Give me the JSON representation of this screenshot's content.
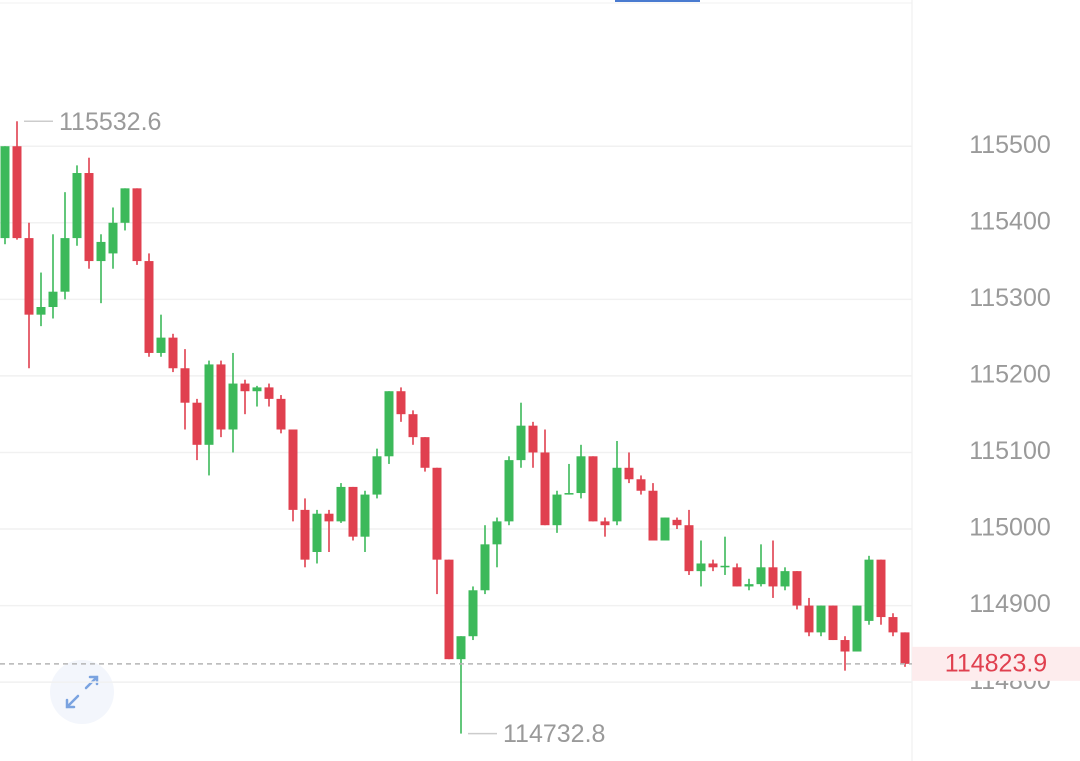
{
  "chart_data": {
    "type": "candlestick",
    "open": [
      115380,
      115500,
      115380,
      115280,
      115290,
      115310,
      115380,
      115465,
      115350,
      115360,
      115400,
      115445,
      115350,
      115230,
      115250,
      115210,
      115165,
      115110,
      115215,
      115130,
      115190,
      115180,
      115185,
      115170,
      115130,
      115025,
      114970,
      115020,
      115010,
      115055,
      114990,
      115045,
      115095,
      115180,
      115150,
      115120,
      115080,
      114960,
      114830,
      114860,
      114920,
      114980,
      115010,
      115090,
      115135,
      115100,
      115005,
      115045,
      115047,
      115095,
      115010,
      115010,
      115080,
      115065,
      115050,
      114985,
      115012,
      115005,
      114945,
      114955,
      114950,
      114950,
      114925,
      114928,
      114950,
      114925,
      114945,
      114900,
      114865,
      114900,
      114855,
      114840,
      114880,
      114960,
      114885,
      114865
    ],
    "high": [
      115500,
      115532.6,
      115400,
      115335,
      115385,
      115440,
      115475,
      115485,
      115385,
      115420,
      115445,
      115445,
      115360,
      115280,
      115255,
      115235,
      115170,
      115220,
      115220,
      115230,
      115195,
      115187,
      115190,
      115175,
      115130,
      115040,
      115025,
      115025,
      115060,
      115055,
      115050,
      115105,
      115180,
      115185,
      115155,
      115120,
      115080,
      114960,
      114860,
      114925,
      115005,
      115015,
      115095,
      115165,
      115140,
      115130,
      115050,
      115085,
      115110,
      115095,
      115015,
      115115,
      115100,
      115070,
      115060,
      115015,
      115015,
      115025,
      114985,
      114960,
      114990,
      114955,
      114935,
      114980,
      114985,
      114950,
      114945,
      114910,
      114900,
      114900,
      114860,
      114900,
      114965,
      114960,
      114890,
      114865
    ],
    "low": [
      115372,
      115378,
      115210,
      115265,
      115275,
      115300,
      115370,
      115340,
      115295,
      115340,
      115390,
      115345,
      115225,
      115225,
      115205,
      115130,
      115090,
      115070,
      115120,
      115100,
      115150,
      115160,
      115160,
      115125,
      115010,
      114950,
      114955,
      114970,
      115008,
      114985,
      114970,
      115040,
      115085,
      115140,
      115110,
      115075,
      114915,
      114830,
      114732.8,
      114855,
      114915,
      114950,
      115005,
      115080,
      115080,
      115005,
      114995,
      115045,
      115040,
      115010,
      114990,
      115005,
      115060,
      115045,
      114985,
      114985,
      115000,
      114940,
      114925,
      114945,
      114940,
      114925,
      114920,
      114925,
      114910,
      114920,
      114895,
      114860,
      114860,
      114855,
      114815,
      114840,
      114875,
      114875,
      114860,
      114820
    ],
    "close": [
      115500,
      115380,
      115280,
      115290,
      115310,
      115380,
      115465,
      115350,
      115375,
      115400,
      115445,
      115350,
      115230,
      115250,
      115210,
      115165,
      115110,
      115215,
      115130,
      115190,
      115180,
      115185,
      115170,
      115130,
      115025,
      114960,
      115020,
      115010,
      115055,
      114990,
      115045,
      115095,
      115180,
      115150,
      115120,
      115080,
      114960,
      114830,
      114860,
      114920,
      114980,
      115010,
      115090,
      115135,
      115100,
      115005,
      115045,
      115047,
      115095,
      115010,
      115005,
      115080,
      115065,
      115050,
      114985,
      115015,
      115005,
      114945,
      114955,
      114950,
      114952,
      114925,
      114928,
      114950,
      114925,
      114945,
      114900,
      114865,
      114900,
      114855,
      114840,
      114900,
      114960,
      114885,
      114865,
      114823.9
    ],
    "up_color": "#3cb95a",
    "down_color": "#e0404f",
    "ylim": [
      114697,
      115691
    ],
    "yticks": [
      114800,
      114900,
      115000,
      115100,
      115200,
      115300,
      115400,
      115500
    ],
    "grid": true,
    "axis_side": "right"
  }
}
